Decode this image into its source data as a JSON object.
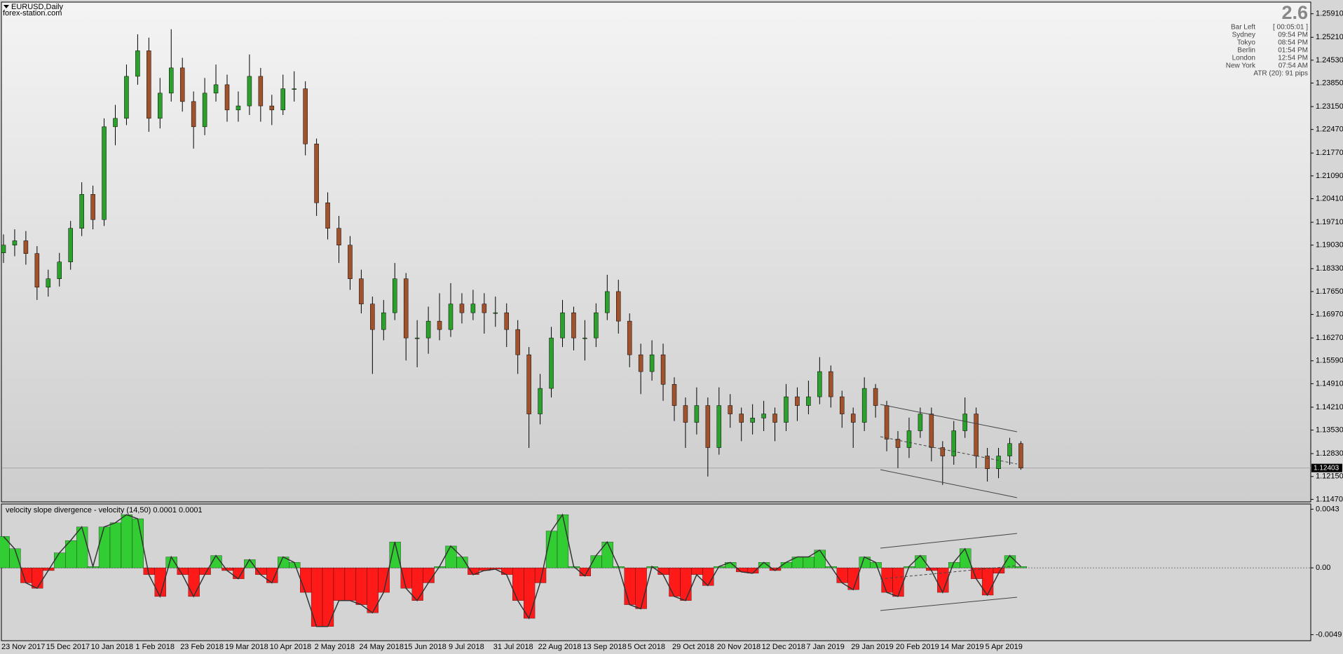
{
  "header": {
    "symbol": "EURUSD,Daily",
    "source": "forex-station.com"
  },
  "info_panel": {
    "spread": "2.6",
    "rows": [
      [
        "Bar Left",
        "[ 00:05:01 ]"
      ],
      [
        "Sydney",
        "09:54 PM"
      ],
      [
        "Tokyo",
        "08:54 PM"
      ],
      [
        "Berlin",
        "01:54 PM"
      ],
      [
        "London",
        "12:54 PM"
      ],
      [
        "New York",
        "07:54 AM"
      ]
    ],
    "atr": "ATR (20): 91 pips"
  },
  "chart_data": [
    {
      "type": "candlestick",
      "open": [
        1.188,
        1.1903,
        1.1916,
        1.1878,
        1.1778,
        1.1803,
        1.1853,
        1.1953,
        1.2054,
        1.1979,
        1.2255,
        1.228,
        1.2405,
        1.2481,
        1.228,
        1.2355,
        1.243,
        1.233,
        1.2255,
        1.2355,
        1.238,
        1.2305,
        1.2317,
        1.2405,
        1.2317,
        1.2305,
        1.2368,
        1.2368,
        1.2204,
        1.2029,
        1.1953,
        1.1903,
        1.1803,
        1.1728,
        1.1652,
        1.1702,
        1.1803,
        1.1627,
        1.1627,
        1.1677,
        1.1652,
        1.1728,
        1.1702,
        1.1728,
        1.1702,
        1.1702,
        1.1652,
        1.1577,
        1.1401,
        1.1477,
        1.1627,
        1.1702,
        1.1627,
        1.1627,
        1.1702,
        1.1765,
        1.1677,
        1.1577,
        1.1527,
        1.1577,
        1.1489,
        1.1426,
        1.1376,
        1.1426,
        1.1301,
        1.1426,
        1.1401,
        1.1376,
        1.1389,
        1.1401,
        1.1376,
        1.1452,
        1.1426,
        1.1452,
        1.1527,
        1.1452,
        1.1401,
        1.1376,
        1.1477,
        1.1426,
        1.1326,
        1.1301,
        1.1351,
        1.1401,
        1.1301,
        1.1276,
        1.1351,
        1.1401,
        1.1276,
        1.1238,
        1.1276,
        1.1313
      ],
      "high": [
        1.1935,
        1.195,
        1.1945,
        1.19,
        1.183,
        1.188,
        1.1975,
        1.209,
        1.208,
        1.228,
        1.232,
        1.244,
        1.253,
        1.252,
        1.24,
        1.2545,
        1.246,
        1.236,
        1.24,
        1.244,
        1.241,
        1.236,
        1.247,
        1.243,
        1.235,
        1.241,
        1.242,
        1.239,
        1.222,
        1.206,
        1.199,
        1.193,
        1.183,
        1.175,
        1.174,
        1.185,
        1.182,
        1.168,
        1.172,
        1.176,
        1.179,
        1.176,
        1.177,
        1.176,
        1.175,
        1.173,
        1.168,
        1.16,
        1.152,
        1.166,
        1.174,
        1.172,
        1.168,
        1.173,
        1.1815,
        1.18,
        1.17,
        1.161,
        1.162,
        1.161,
        1.151,
        1.145,
        1.148,
        1.145,
        1.148,
        1.146,
        1.142,
        1.143,
        1.144,
        1.142,
        1.149,
        1.148,
        1.15,
        1.157,
        1.1545,
        1.147,
        1.142,
        1.151,
        1.149,
        1.144,
        1.135,
        1.139,
        1.142,
        1.142,
        1.132,
        1.138,
        1.145,
        1.142,
        1.13,
        1.13,
        1.133,
        1.132
      ],
      "low": [
        1.185,
        1.187,
        1.1845,
        1.174,
        1.175,
        1.178,
        1.183,
        1.193,
        1.195,
        1.196,
        1.22,
        1.226,
        1.238,
        1.224,
        1.225,
        1.233,
        1.23,
        1.219,
        1.223,
        1.233,
        1.227,
        1.227,
        1.229,
        1.227,
        1.226,
        1.229,
        1.233,
        1.217,
        1.199,
        1.192,
        1.185,
        1.177,
        1.17,
        1.152,
        1.162,
        1.168,
        1.156,
        1.154,
        1.158,
        1.162,
        1.163,
        1.167,
        1.168,
        1.164,
        1.166,
        1.16,
        1.152,
        1.13,
        1.137,
        1.145,
        1.16,
        1.159,
        1.156,
        1.16,
        1.168,
        1.164,
        1.154,
        1.146,
        1.15,
        1.144,
        1.138,
        1.13,
        1.134,
        1.1215,
        1.128,
        1.136,
        1.132,
        1.134,
        1.135,
        1.132,
        1.135,
        1.138,
        1.14,
        1.143,
        1.142,
        1.136,
        1.13,
        1.135,
        1.139,
        1.129,
        1.124,
        1.127,
        1.133,
        1.126,
        1.119,
        1.125,
        1.133,
        1.124,
        1.12,
        1.121,
        1.125,
        1.1235
      ],
      "close": [
        1.1903,
        1.1916,
        1.1878,
        1.1778,
        1.1803,
        1.1853,
        1.1953,
        1.2054,
        1.1979,
        1.2255,
        1.228,
        1.2405,
        1.2481,
        1.228,
        1.2355,
        1.243,
        1.233,
        1.2255,
        1.2355,
        1.238,
        1.2305,
        1.2317,
        1.2405,
        1.2317,
        1.2305,
        1.2368,
        1.2368,
        1.2204,
        1.2029,
        1.1953,
        1.1903,
        1.1803,
        1.1728,
        1.1652,
        1.1702,
        1.1803,
        1.1627,
        1.1627,
        1.1677,
        1.1652,
        1.1728,
        1.1702,
        1.1728,
        1.1702,
        1.1702,
        1.1652,
        1.1577,
        1.1401,
        1.1477,
        1.1627,
        1.1702,
        1.1627,
        1.1627,
        1.1702,
        1.1765,
        1.1677,
        1.1577,
        1.1527,
        1.1577,
        1.1489,
        1.1426,
        1.1376,
        1.1426,
        1.1301,
        1.1426,
        1.1401,
        1.1376,
        1.1389,
        1.1401,
        1.1376,
        1.1452,
        1.1426,
        1.1452,
        1.1527,
        1.1452,
        1.1401,
        1.1376,
        1.1477,
        1.1426,
        1.1326,
        1.1301,
        1.1351,
        1.1401,
        1.1301,
        1.1276,
        1.1351,
        1.1401,
        1.1276,
        1.1238,
        1.1276,
        1.1313,
        1.124
      ],
      "up_color": "#2ca02c",
      "down_color": "#a0522d",
      "ylim": [
        1.11395,
        1.26236
      ],
      "yticks": [
        {
          "value": 1.2591,
          "label": "1.25910"
        },
        {
          "value": 1.2521,
          "label": "1.25210"
        },
        {
          "value": 1.2453,
          "label": "1.24530"
        },
        {
          "value": 1.2385,
          "label": "1.23850"
        },
        {
          "value": 1.2315,
          "label": "1.23150"
        },
        {
          "value": 1.2247,
          "label": "1.22470"
        },
        {
          "value": 1.2177,
          "label": "1.21770"
        },
        {
          "value": 1.2109,
          "label": "1.21090"
        },
        {
          "value": 1.2041,
          "label": "1.20410"
        },
        {
          "value": 1.1971,
          "label": "1.19710"
        },
        {
          "value": 1.1903,
          "label": "1.19030"
        },
        {
          "value": 1.1833,
          "label": "1.18330"
        },
        {
          "value": 1.1765,
          "label": "1.17650"
        },
        {
          "value": 1.1697,
          "label": "1.16970"
        },
        {
          "value": 1.1627,
          "label": "1.16270"
        },
        {
          "value": 1.1559,
          "label": "1.15590"
        },
        {
          "value": 1.1491,
          "label": "1.14910"
        },
        {
          "value": 1.1421,
          "label": "1.14210"
        },
        {
          "value": 1.1353,
          "label": "1.13530"
        },
        {
          "value": 1.1283,
          "label": "1.12830"
        },
        {
          "value": 1.1215,
          "label": "1.12150"
        },
        {
          "value": 1.1147,
          "label": "1.11470"
        }
      ],
      "last_price": 1.12403
    },
    {
      "type": "bar",
      "title": "velocity slope divergence - velocity (14,50) 0.0001 0.0001",
      "categories": [
        "23 Nov 2017",
        null,
        null,
        null,
        "15 Dec 2017",
        null,
        null,
        null,
        "10 Jan 2018",
        null,
        null,
        null,
        "1 Feb 2018",
        null,
        null,
        null,
        "23 Feb 2018",
        null,
        null,
        null,
        "19 Mar 2018",
        null,
        null,
        null,
        "10 Apr 2018",
        null,
        null,
        null,
        "2 May 2018",
        null,
        null,
        null,
        "24 May 2018",
        null,
        null,
        null,
        "15 Jun 2018",
        null,
        null,
        null,
        "9 Jul 2018",
        null,
        null,
        null,
        "31 Jul 2018",
        null,
        null,
        null,
        "22 Aug 2018",
        null,
        null,
        null,
        "13 Sep 2018",
        null,
        null,
        null,
        "5 Oct 2018",
        null,
        null,
        null,
        "29 Oct 2018",
        null,
        null,
        null,
        "20 Nov 2018",
        null,
        null,
        null,
        "12 Dec 2018",
        null,
        null,
        null,
        "7 Jan 2019",
        null,
        null,
        null,
        "29 Jan 2019",
        null,
        null,
        null,
        "20 Feb 2019",
        null,
        null,
        null,
        "14 Mar 2019",
        null,
        null,
        null,
        "5 Apr 2019",
        null,
        null,
        null
      ],
      "values": [
        0.0023,
        0.0014,
        -0.0011,
        -0.0015,
        -0.0002,
        0.0011,
        0.002,
        0.003,
        0.0001,
        0.003,
        0.0033,
        0.0039,
        0.0036,
        -0.0005,
        -0.0021,
        0.0008,
        -0.0005,
        -0.0021,
        -0.0005,
        0.0009,
        -0.0002,
        -0.0008,
        0.0006,
        -0.0005,
        -0.0011,
        0.0008,
        0.0004,
        -0.0018,
        -0.0043,
        -0.0043,
        -0.0024,
        -0.0024,
        -0.0027,
        -0.0033,
        -0.0018,
        0.0019,
        -0.0015,
        -0.0024,
        -0.0011,
        0.0001,
        0.0016,
        0.0008,
        -0.0005,
        -0.0002,
        -0.0001,
        -0.0005,
        -0.0024,
        -0.0037,
        -0.0011,
        0.0027,
        0.0039,
        0.0001,
        -0.0006,
        0.0009,
        0.0019,
        0.0001,
        -0.0027,
        -0.003,
        0.0001,
        -0.0005,
        -0.0021,
        -0.0024,
        -0.0005,
        -0.0013,
        0.0001,
        0.0004,
        -0.0003,
        -0.0004,
        0.0004,
        -0.0002,
        0.0004,
        0.0008,
        0.0008,
        0.0013,
        0.0001,
        -0.0011,
        -0.0016,
        0.0008,
        0.0004,
        -0.0018,
        -0.0021,
        0.0001,
        0.0009,
        -0.0002,
        -0.0018,
        0.0004,
        0.0014,
        -0.0008,
        -0.002,
        -0.0004,
        0.0009,
        0.0001
      ],
      "up_color": "#32cd32",
      "down_color": "#ff1a1a",
      "line_color": "#333333",
      "ylim": [
        -0.00534,
        0.00468
      ],
      "yticks": [
        0.0043,
        {
          "value": 0,
          "label": "0.00"
        },
        -0.0049
      ]
    }
  ]
}
